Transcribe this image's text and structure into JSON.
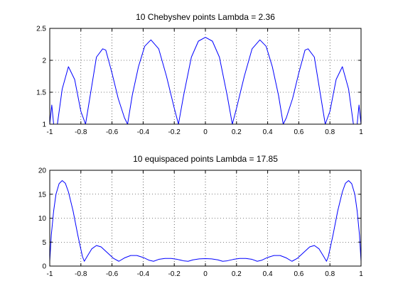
{
  "chart_data": [
    {
      "type": "line",
      "title": "10 Chebyshev points    Lambda = 2.36",
      "xlabel": "",
      "ylabel": "",
      "xlim": [
        -1,
        1
      ],
      "ylim": [
        1,
        2.5
      ],
      "x_ticks": [
        -1,
        -0.8,
        -0.6,
        -0.4,
        -0.2,
        0,
        0.2,
        0.4,
        0.6,
        0.8,
        1
      ],
      "x_tick_labels": [
        "-1",
        "-0.8",
        "-0.6",
        "-0.4",
        "-0.2",
        "0",
        "0.2",
        "0.4",
        "0.6",
        "0.8",
        "1"
      ],
      "y_ticks": [
        1,
        1.5,
        2,
        2.5
      ],
      "y_tick_labels": [
        "1",
        "1.5",
        "2",
        "2.5"
      ],
      "grid": true,
      "line_color": "#0000ff",
      "series": [
        {
          "x": [
            -1.0,
            -0.987,
            -0.975,
            -0.951,
            -0.92,
            -0.88,
            -0.84,
            -0.8,
            -0.77,
            -0.74,
            -0.7,
            -0.66,
            -0.64,
            -0.6,
            -0.56,
            -0.52,
            -0.5,
            -0.47,
            -0.43,
            -0.39,
            -0.35,
            -0.3,
            -0.25,
            -0.2,
            -0.173,
            -0.14,
            -0.09,
            -0.045,
            0.0,
            0.045,
            0.09,
            0.14,
            0.173,
            0.2,
            0.25,
            0.3,
            0.35,
            0.39,
            0.43,
            0.47,
            0.5,
            0.52,
            0.56,
            0.6,
            0.64,
            0.66,
            0.7,
            0.74,
            0.77,
            0.8,
            0.84,
            0.88,
            0.92,
            0.951,
            0.975,
            0.987,
            1.0
          ],
          "y": [
            1.0,
            1.3,
            1.0,
            1.0,
            1.55,
            1.9,
            1.7,
            1.2,
            1.0,
            1.45,
            2.05,
            2.18,
            2.16,
            1.8,
            1.4,
            1.1,
            1.0,
            1.45,
            1.9,
            2.22,
            2.32,
            2.18,
            1.75,
            1.25,
            1.0,
            1.45,
            2.05,
            2.3,
            2.36,
            2.3,
            2.05,
            1.45,
            1.0,
            1.25,
            1.75,
            2.18,
            2.32,
            2.22,
            1.9,
            1.45,
            1.0,
            1.1,
            1.4,
            1.8,
            2.16,
            2.18,
            2.05,
            1.45,
            1.0,
            1.2,
            1.7,
            1.9,
            1.55,
            1.0,
            1.0,
            1.3,
            1.0
          ]
        }
      ]
    },
    {
      "type": "line",
      "title": "10 equispaced points    Lambda = 17.85",
      "xlabel": "",
      "ylabel": "",
      "xlim": [
        -1,
        1
      ],
      "ylim": [
        0,
        20
      ],
      "x_ticks": [
        -1,
        -0.8,
        -0.6,
        -0.4,
        -0.2,
        0,
        0.2,
        0.4,
        0.6,
        0.8,
        1
      ],
      "x_tick_labels": [
        "-1",
        "-0.8",
        "-0.6",
        "-0.4",
        "-0.2",
        "0",
        "0.2",
        "0.4",
        "0.6",
        "0.8",
        "1"
      ],
      "y_ticks": [
        0,
        5,
        10,
        15,
        20
      ],
      "y_tick_labels": [
        "0",
        "5",
        "10",
        "15",
        "20"
      ],
      "grid": true,
      "line_color": "#0000ff",
      "series": [
        {
          "x": [
            -1.0,
            -0.99,
            -0.975,
            -0.96,
            -0.94,
            -0.92,
            -0.9,
            -0.88,
            -0.85,
            -0.82,
            -0.79,
            -0.778,
            -0.76,
            -0.73,
            -0.7,
            -0.67,
            -0.63,
            -0.59,
            -0.556,
            -0.52,
            -0.48,
            -0.44,
            -0.4,
            -0.36,
            -0.333,
            -0.3,
            -0.26,
            -0.22,
            -0.18,
            -0.14,
            -0.111,
            -0.08,
            -0.04,
            0.0,
            0.04,
            0.08,
            0.111,
            0.14,
            0.18,
            0.22,
            0.26,
            0.3,
            0.333,
            0.36,
            0.4,
            0.44,
            0.48,
            0.52,
            0.556,
            0.59,
            0.63,
            0.67,
            0.7,
            0.73,
            0.76,
            0.778,
            0.79,
            0.82,
            0.85,
            0.88,
            0.9,
            0.92,
            0.94,
            0.96,
            0.975,
            0.99,
            1.0
          ],
          "y": [
            1.0,
            6.5,
            11.5,
            15.0,
            17.2,
            17.85,
            17.3,
            15.5,
            11.5,
            6.5,
            2.0,
            1.0,
            2.0,
            3.6,
            4.3,
            4.0,
            2.8,
            1.6,
            1.0,
            1.7,
            2.2,
            2.2,
            1.8,
            1.2,
            1.0,
            1.4,
            1.6,
            1.6,
            1.4,
            1.1,
            1.0,
            1.3,
            1.5,
            1.55,
            1.5,
            1.3,
            1.0,
            1.1,
            1.4,
            1.6,
            1.6,
            1.4,
            1.0,
            1.2,
            1.8,
            2.2,
            2.2,
            1.7,
            1.0,
            1.6,
            2.8,
            4.0,
            4.3,
            3.6,
            2.0,
            1.0,
            2.0,
            6.5,
            11.5,
            15.5,
            17.3,
            17.85,
            17.2,
            15.0,
            11.5,
            6.5,
            1.0
          ]
        }
      ]
    }
  ]
}
